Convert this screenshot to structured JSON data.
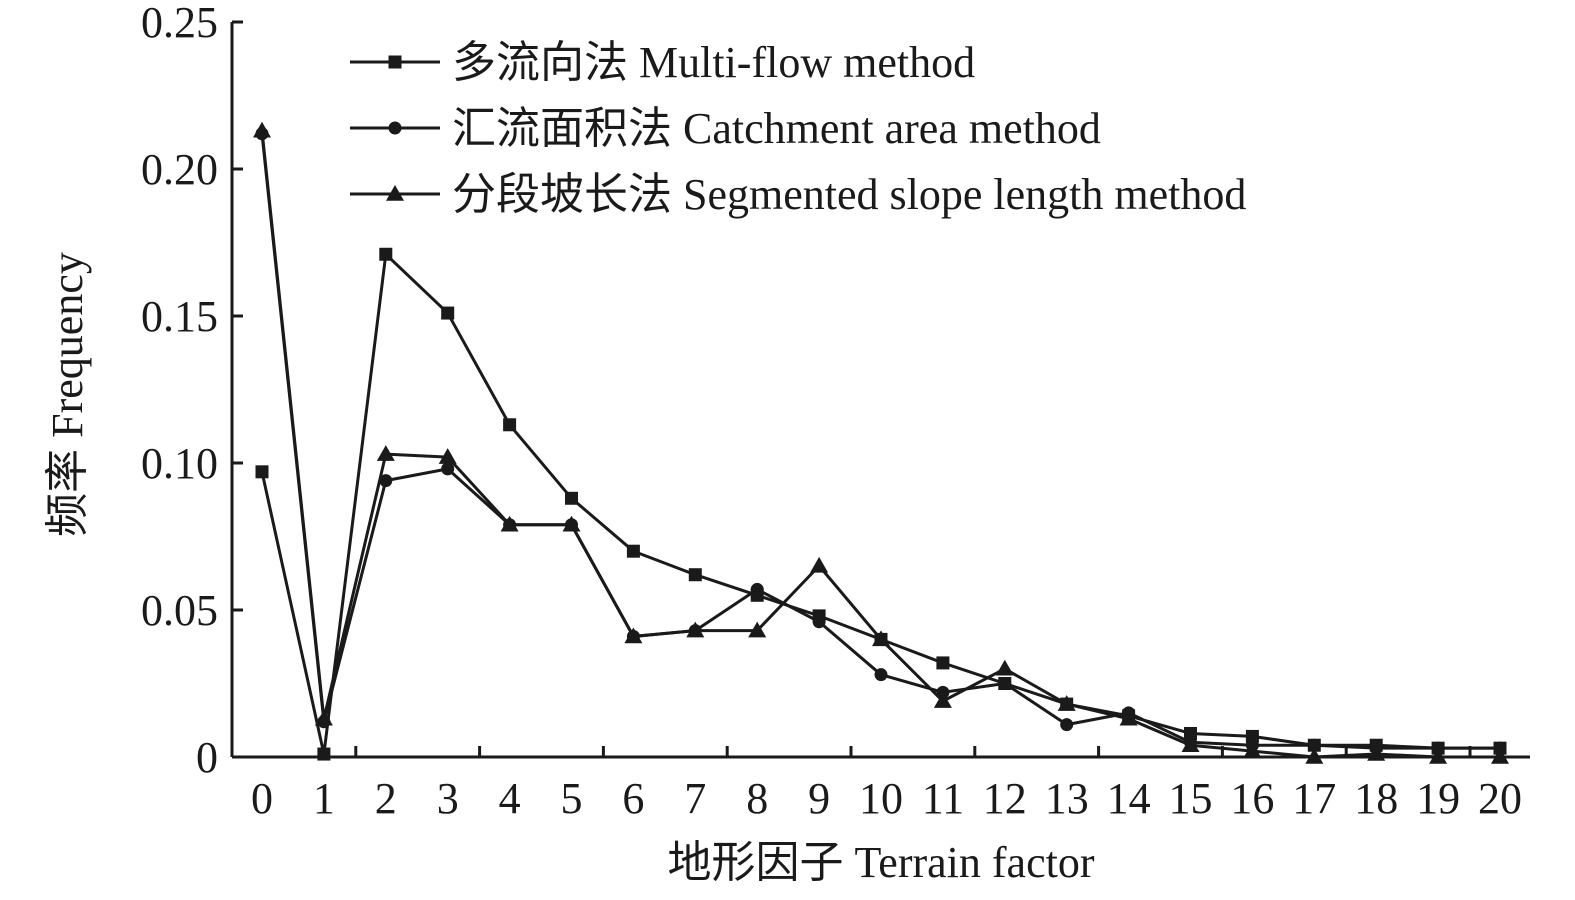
{
  "chart_data": {
    "type": "line",
    "xlabel": "地形因子 Terrain factor",
    "ylabel": "频率 Frequency",
    "x": [
      0,
      1,
      2,
      3,
      4,
      5,
      6,
      7,
      8,
      9,
      10,
      11,
      12,
      13,
      14,
      15,
      16,
      17,
      18,
      19,
      20
    ],
    "x_tick_labels": [
      "0",
      "1",
      "2",
      "3",
      "4",
      "5",
      "6",
      "7",
      "8",
      "9",
      "10",
      "11",
      "12",
      "13",
      "14",
      "15",
      "16",
      "17",
      "18",
      "19",
      "20"
    ],
    "ylim": [
      0,
      0.25
    ],
    "y_ticks": [
      0,
      0.05,
      0.1,
      0.15,
      0.2,
      0.25
    ],
    "y_tick_labels": [
      "0",
      "0.05",
      "0.10",
      "0.15",
      "0.20",
      "0.25"
    ],
    "legend_position": "top-center",
    "grid": false,
    "line_color": "#1a1a1a",
    "series": [
      {
        "name": "多流向法 Multi-flow method",
        "marker": "square",
        "values": [
          0.097,
          0.001,
          0.171,
          0.151,
          0.113,
          0.088,
          0.07,
          0.062,
          0.055,
          0.048,
          0.04,
          0.032,
          0.025,
          0.018,
          0.014,
          0.008,
          0.007,
          0.004,
          0.004,
          0.003,
          0.003
        ]
      },
      {
        "name": "汇流面积法 Catchment area method",
        "marker": "circle",
        "values": [
          0.212,
          0.012,
          0.094,
          0.098,
          0.079,
          0.079,
          0.041,
          0.043,
          0.057,
          0.046,
          0.028,
          0.022,
          0.025,
          0.011,
          0.015,
          0.005,
          0.004,
          0.004,
          0.003,
          0.003,
          0.003
        ]
      },
      {
        "name": "分段坡长法 Segmented slope length method",
        "marker": "triangle",
        "values": [
          0.213,
          0.013,
          0.103,
          0.102,
          0.079,
          0.079,
          0.041,
          0.043,
          0.043,
          0.065,
          0.04,
          0.019,
          0.03,
          0.018,
          0.013,
          0.004,
          0.002,
          0.0,
          0.001,
          0.0,
          0.0
        ]
      }
    ]
  }
}
